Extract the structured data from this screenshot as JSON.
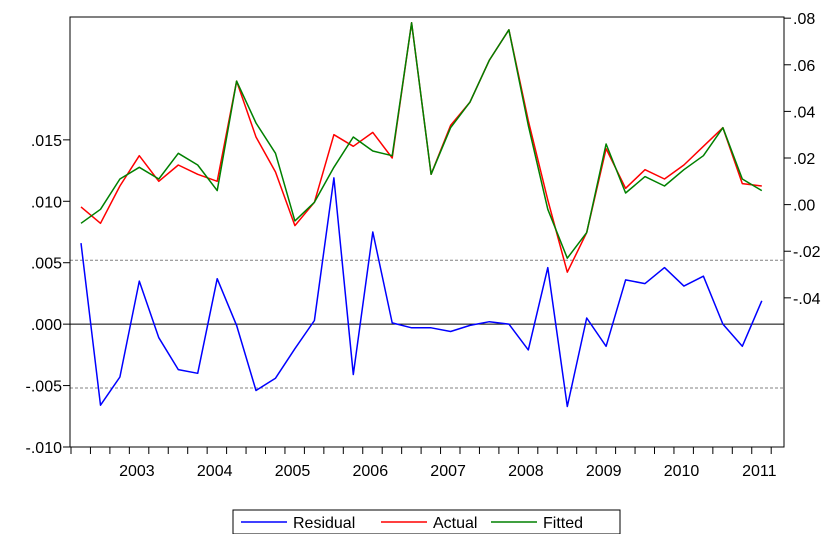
{
  "chart_data": {
    "type": "line",
    "title": "",
    "xlabel": "",
    "ylabel": "",
    "x_tick_labels": [
      "2003",
      "2004",
      "2005",
      "2006",
      "2007",
      "2008",
      "2009",
      "2010",
      "2011"
    ],
    "quarters": [
      "2002Q3",
      "2002Q4",
      "2003Q1",
      "2003Q2",
      "2003Q3",
      "2003Q4",
      "2004Q1",
      "2004Q2",
      "2004Q3",
      "2004Q4",
      "2005Q1",
      "2005Q2",
      "2005Q3",
      "2005Q4",
      "2006Q1",
      "2006Q2",
      "2006Q3",
      "2006Q4",
      "2007Q1",
      "2007Q2",
      "2007Q3",
      "2007Q4",
      "2008Q1",
      "2008Q2",
      "2008Q3",
      "2008Q4",
      "2009Q1",
      "2009Q2",
      "2009Q3",
      "2009Q4",
      "2010Q1",
      "2010Q2",
      "2010Q3",
      "2010Q4",
      "2011Q1",
      "2011Q2"
    ],
    "left_axis": {
      "ylim": [
        -0.01,
        0.025
      ],
      "ticks": [
        -0.01,
        -0.005,
        0.0,
        0.005,
        0.01,
        0.015
      ],
      "tick_labels": [
        "-.010",
        "-.005",
        ".000",
        ".005",
        ".010",
        ".015"
      ],
      "reference_lines": [
        {
          "value": 0.0,
          "style": "solid",
          "color": "#000000"
        },
        {
          "value": 0.0052,
          "style": "dashed",
          "color": "#808080"
        },
        {
          "value": -0.0052,
          "style": "dashed",
          "color": "#808080"
        }
      ]
    },
    "right_axis": {
      "ylim": [
        -0.104,
        0.0805
      ],
      "ticks": [
        -0.04,
        -0.02,
        0.0,
        0.02,
        0.04,
        0.06,
        0.08
      ],
      "tick_labels": [
        "-.04",
        "-.02",
        ".00",
        ".02",
        ".04",
        ".06",
        ".08"
      ]
    },
    "series": [
      {
        "name": "Residual",
        "axis": "left",
        "color": "#0000ff",
        "values": [
          0.0066,
          -0.0066,
          -0.0043,
          0.0035,
          -0.0011,
          -0.0037,
          -0.004,
          0.0037,
          -0.0001,
          -0.0054,
          -0.0044,
          -0.002,
          0.0003,
          0.0119,
          -0.0041,
          0.0075,
          0.0001,
          -0.0003,
          -0.0003,
          -0.0006,
          -0.0001,
          0.0002,
          0.0,
          -0.0021,
          0.0046,
          -0.0067,
          0.0005,
          -0.0018,
          0.0036,
          0.0033,
          0.0046,
          0.0031,
          0.0039,
          0.0,
          -0.0018,
          0.0019
        ]
      },
      {
        "name": "Actual",
        "axis": "right",
        "color": "#ff0000",
        "values": [
          -0.001,
          -0.008,
          0.008,
          0.021,
          0.01,
          0.017,
          0.013,
          0.01,
          0.053,
          0.029,
          0.014,
          -0.009,
          0.001,
          0.03,
          0.025,
          0.031,
          0.02,
          0.078,
          0.013,
          0.034,
          0.044,
          0.062,
          0.075,
          0.036,
          0.002,
          -0.029,
          -0.012,
          0.024,
          0.007,
          0.015,
          0.011,
          0.017,
          0.025,
          0.033,
          0.009,
          0.008
        ]
      },
      {
        "name": "Fitted",
        "axis": "right",
        "color": "#008000",
        "values": [
          -0.008,
          -0.002,
          0.011,
          0.016,
          0.011,
          0.022,
          0.017,
          0.006,
          0.053,
          0.035,
          0.022,
          -0.007,
          0.001,
          0.016,
          0.029,
          0.023,
          0.021,
          0.078,
          0.013,
          0.033,
          0.044,
          0.062,
          0.075,
          0.034,
          -0.002,
          -0.023,
          -0.012,
          0.026,
          0.005,
          0.012,
          0.008,
          0.015,
          0.021,
          0.033,
          0.011,
          0.006
        ]
      }
    ],
    "grid": false,
    "legend": {
      "position": "bottom-center",
      "entries": [
        "Residual",
        "Actual",
        "Fitted"
      ]
    }
  }
}
